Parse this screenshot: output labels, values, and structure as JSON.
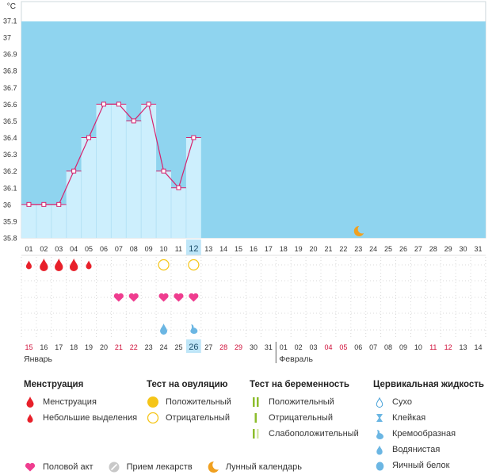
{
  "chart_data": {
    "type": "line",
    "unit": "°C",
    "ylim": [
      35.8,
      37.1
    ],
    "yticks": [
      "37.1",
      "37",
      "36.9",
      "36.8",
      "36.7",
      "36.6",
      "36.5",
      "36.4",
      "36.3",
      "36.2",
      "36.1",
      "36",
      "35.9",
      "35.8"
    ],
    "cycle_days": [
      "01",
      "02",
      "03",
      "04",
      "05",
      "06",
      "07",
      "08",
      "09",
      "10",
      "11",
      "12",
      "13",
      "14",
      "15",
      "16",
      "17",
      "18",
      "19",
      "20",
      "21",
      "22",
      "23",
      "24",
      "25",
      "26",
      "27",
      "28",
      "29",
      "30",
      "31"
    ],
    "dates": [
      "15",
      "16",
      "17",
      "18",
      "19",
      "20",
      "21",
      "22",
      "23",
      "24",
      "25",
      "26",
      "27",
      "28",
      "29",
      "30",
      "31",
      "01",
      "02",
      "03",
      "04",
      "05",
      "06",
      "07",
      "08",
      "09",
      "10",
      "11",
      "12",
      "13",
      "14"
    ],
    "weekend_date_indices": [
      0,
      6,
      7,
      13,
      14,
      20,
      21,
      27,
      28
    ],
    "current_day_index": 11,
    "months": [
      "Январь",
      "Февраль"
    ],
    "temperature": [
      36.0,
      36.0,
      36.0,
      36.2,
      36.4,
      36.6,
      36.6,
      36.5,
      36.6,
      36.2,
      36.1,
      36.4
    ],
    "colors": {
      "fertile_band": "#8fd4ef",
      "bar": "#cdeffd",
      "line": "#d6236e",
      "menstruation": "#e8202a",
      "heart": "#ef3d8f",
      "ovulation_negative": "#f5c518",
      "moon": "#f0a020"
    },
    "markers": {
      "menstruation": [
        {
          "day": 0,
          "size": "small"
        },
        {
          "day": 1,
          "size": "large"
        },
        {
          "day": 2,
          "size": "large"
        },
        {
          "day": 3,
          "size": "large"
        },
        {
          "day": 4,
          "size": "small"
        }
      ],
      "ovulation_test": [
        {
          "day": 9,
          "result": "negative"
        },
        {
          "day": 11,
          "result": "negative"
        }
      ],
      "intercourse": [
        6,
        7,
        9,
        10,
        11
      ],
      "cervical_fluid": [
        {
          "day": 9,
          "type": "eggwhite"
        },
        {
          "day": 11,
          "type": "creamy"
        }
      ],
      "lunar": [
        22
      ]
    }
  },
  "legend": {
    "menstruation": {
      "title": "Менструация",
      "items": [
        "Менструация",
        "Небольшие выделения"
      ]
    },
    "ovulation": {
      "title": "Тест на овуляцию",
      "items": [
        "Положительный",
        "Отрицательный"
      ]
    },
    "pregnancy": {
      "title": "Тест на беременность",
      "items": [
        "Положительный",
        "Отрицательный",
        "Слабоположительный"
      ]
    },
    "fluid": {
      "title": "Цервикальная жидкость",
      "items": [
        "Сухо",
        "Клейкая",
        "Кремообразная",
        "Водянистая",
        "Яичный белок"
      ]
    },
    "other": [
      "Половой акт",
      "Прием лекарств",
      "Лунный календарь"
    ]
  }
}
